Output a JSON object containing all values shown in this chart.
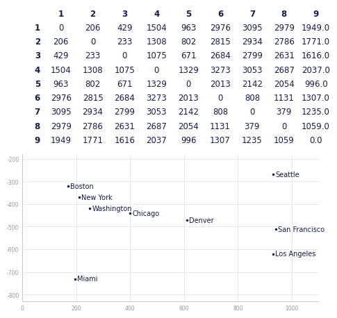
{
  "cities": [
    "Boston",
    "New York",
    "Washington",
    "Chicago",
    "Denver",
    "San Francisco",
    "Los Angeles",
    "Seattle",
    "Miami"
  ],
  "row_labels": [
    "1",
    "2",
    "3",
    "4",
    "5",
    "6",
    "7",
    "8",
    "9"
  ],
  "col_labels": [
    "1",
    "2",
    "3",
    "4",
    "5",
    "6",
    "7",
    "8",
    "9"
  ],
  "matrix": [
    [
      0,
      206,
      429,
      1504,
      963,
      2976,
      3095,
      2979,
      1949.0
    ],
    [
      206,
      0,
      233,
      1308,
      802,
      2815,
      2934,
      2786,
      1771.0
    ],
    [
      429,
      233,
      0,
      1075,
      671,
      2684,
      2799,
      2631,
      1616.0
    ],
    [
      1504,
      1308,
      1075,
      0,
      1329,
      3273,
      3053,
      2687,
      2037.0
    ],
    [
      963,
      802,
      671,
      1329,
      0,
      2013,
      2142,
      2054,
      996.0
    ],
    [
      2976,
      2815,
      2684,
      3273,
      2013,
      0,
      808,
      1131,
      1307.0
    ],
    [
      3095,
      2934,
      2799,
      3053,
      2142,
      808,
      0,
      379,
      1235.0
    ],
    [
      2979,
      2786,
      2631,
      2687,
      2054,
      1131,
      379,
      0,
      1059.0
    ],
    [
      1949,
      1771,
      1616,
      2037,
      996,
      1307,
      1235,
      1059,
      0.0
    ]
  ],
  "city_x": {
    "Boston": 170,
    "New York": 210,
    "Washington": 250,
    "Chicago": 400,
    "Denver": 610,
    "San Francisco": 940,
    "Los Angeles": 930,
    "Seattle": 930,
    "Miami": 195
  },
  "city_y": {
    "Boston": -320,
    "New York": -370,
    "Washington": -420,
    "Chicago": -440,
    "Denver": -470,
    "San Francisco": -510,
    "Los Angeles": -620,
    "Seattle": -270,
    "Miami": -730
  },
  "scatter_xlim": [
    0,
    1100
  ],
  "scatter_ylim": [
    -830,
    -180
  ],
  "scatter_yticks": [
    -800,
    -700,
    -600,
    -500,
    -400,
    -300,
    -200
  ],
  "scatter_xticks": [
    0,
    200,
    400,
    600,
    800,
    1000
  ],
  "bg_color": "#ffffff",
  "text_color": "#1a1a4a",
  "table_font_size": 8.5,
  "scatter_font_size": 7
}
